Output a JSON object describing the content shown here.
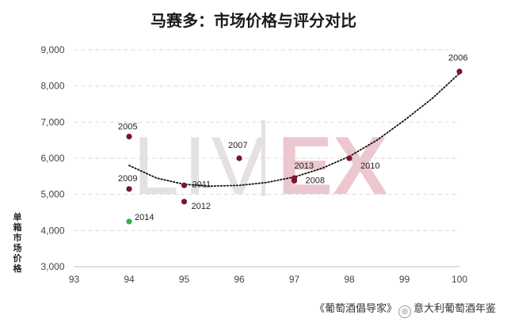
{
  "chart_data": {
    "type": "scatter",
    "title": "马赛多：市场价格与评分对比",
    "xlabel": "",
    "ylabel": "单箱市场价格",
    "xlim": [
      93,
      100
    ],
    "ylim": [
      3000,
      9000
    ],
    "x_ticks": [
      93,
      94,
      95,
      96,
      97,
      98,
      99,
      100
    ],
    "y_ticks": [
      3000,
      4000,
      5000,
      6000,
      7000,
      8000,
      9000
    ],
    "y_tick_labels": [
      "3,000",
      "4,000",
      "5,000",
      "6,000",
      "7,000",
      "8,000",
      "9,000"
    ],
    "grid": "horizontal dashed",
    "watermark": "LIV|EX",
    "points": [
      {
        "label": "2005",
        "x": 94,
        "y": 6600,
        "color": "#7a1530"
      },
      {
        "label": "2009",
        "x": 94,
        "y": 5150,
        "color": "#7a1530"
      },
      {
        "label": "2014",
        "x": 94,
        "y": 4250,
        "color": "#2db34a"
      },
      {
        "label": "2011",
        "x": 95,
        "y": 5250,
        "color": "#7a1530"
      },
      {
        "label": "2012",
        "x": 95,
        "y": 4800,
        "color": "#7a1530"
      },
      {
        "label": "2007",
        "x": 96,
        "y": 6000,
        "color": "#7a1530"
      },
      {
        "label": "2013",
        "x": 97,
        "y": 5450,
        "color": "#7a1530"
      },
      {
        "label": "2008",
        "x": 97,
        "y": 5380,
        "color": "#7a1530"
      },
      {
        "label": "2010",
        "x": 98,
        "y": 6000,
        "color": "#7a1530"
      },
      {
        "label": "2006",
        "x": 100,
        "y": 8400,
        "color": "#7a1530"
      }
    ],
    "trendline": {
      "type": "polynomial",
      "x": [
        94,
        94.5,
        95,
        95.5,
        96,
        96.5,
        97,
        97.5,
        98,
        98.5,
        99,
        99.5,
        100
      ],
      "y": [
        5800,
        5450,
        5280,
        5230,
        5250,
        5330,
        5480,
        5720,
        6050,
        6500,
        7050,
        7650,
        8350
      ]
    }
  },
  "footer": {
    "left_text": "《葡萄酒倡导家》",
    "right_text": "意大利葡萄酒年鉴"
  },
  "colors": {
    "point": "#7a1530",
    "highlight_point": "#2db34a",
    "watermark_grey": "#e6e1e1",
    "watermark_pink": "#ecc7cf",
    "grid": "#d9d9d9"
  }
}
